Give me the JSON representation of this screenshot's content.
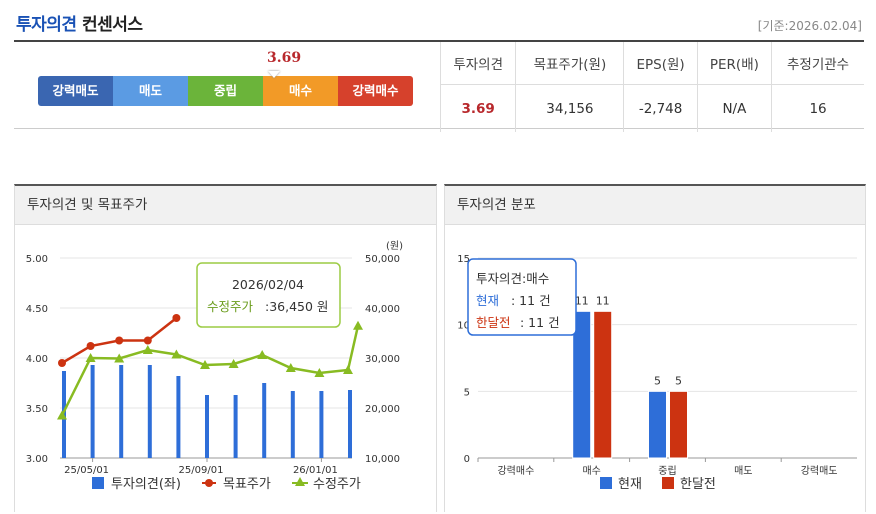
{
  "header": {
    "title_highlight": "투자의견",
    "title_rest": "컨센서스",
    "base_date": "[기준:2026.02.04]"
  },
  "scale": {
    "score": "3.69",
    "segments": [
      {
        "label": "강력매도",
        "color": "#3a66b1"
      },
      {
        "label": "매도",
        "color": "#5b9be3"
      },
      {
        "label": "중립",
        "color": "#6bb43a"
      },
      {
        "label": "매수",
        "color": "#f29a27"
      },
      {
        "label": "강력매수",
        "color": "#d6412c"
      }
    ]
  },
  "summary": {
    "headers": [
      "투자의견",
      "목표주가(원)",
      "EPS(원)",
      "PER(배)",
      "추정기관수"
    ],
    "values": [
      "3.69",
      "34,156",
      "-2,748",
      "N/A",
      "16"
    ]
  },
  "panels": {
    "left_title": "투자의견 및 목표주가",
    "right_title": "투자의견 분포"
  },
  "chart_data": [
    {
      "type": "bar+line",
      "title": "투자의견 및 목표주가",
      "y_left_ticks": [
        "5.00",
        "4.50",
        "4.00",
        "3.50",
        "3.00"
      ],
      "y_left_range": [
        3.0,
        5.0
      ],
      "y_right_unit": "(원)",
      "y_right_ticks": [
        "50,000",
        "40,000",
        "30,000",
        "20,000",
        "10,000"
      ],
      "y_right_range": [
        10000,
        50000
      ],
      "x_tick_labels": [
        "25/05/01",
        "25/09/01",
        "26/01/01"
      ],
      "x_tick_index": [
        1,
        5,
        9
      ],
      "series": [
        {
          "name": "투자의견(좌)",
          "kind": "bar",
          "color": "#2e6ed8",
          "values": [
            3.87,
            3.93,
            3.93,
            3.93,
            3.82,
            3.63,
            3.63,
            3.75,
            3.67,
            3.67,
            3.68
          ]
        },
        {
          "name": "목표주가",
          "kind": "line",
          "color": "#cc3311",
          "values": [
            29000,
            32400,
            33500,
            33500,
            38000,
            null,
            null,
            null,
            null,
            null,
            null
          ]
        },
        {
          "name": "수정주가",
          "kind": "line",
          "color": "#88bb22",
          "values": [
            18500,
            30000,
            29900,
            31600,
            30700,
            28600,
            28800,
            30600,
            28000,
            27000,
            27600,
            36450
          ]
        }
      ],
      "tooltip": {
        "date": "2026/02/04",
        "label": "수정주가",
        "value": "36,450 원"
      }
    },
    {
      "type": "bar",
      "title": "투자의견 분포",
      "categories": [
        "강력매수",
        "매수",
        "중립",
        "매도",
        "강력매도"
      ],
      "y_ticks": [
        "15",
        "10",
        "5",
        "0"
      ],
      "ylim": [
        0,
        15
      ],
      "series": [
        {
          "name": "현재",
          "color": "#2e6ed8",
          "values": [
            0,
            11,
            5,
            0,
            0
          ]
        },
        {
          "name": "한달전",
          "color": "#cc3311",
          "values": [
            0,
            11,
            5,
            0,
            0
          ]
        }
      ],
      "tooltip": {
        "title": "투자의견:매수",
        "line1_label": "현재",
        "line1_value": ": 11 건",
        "line2_label": "한달전",
        "line2_value": ": 11 건"
      }
    }
  ]
}
